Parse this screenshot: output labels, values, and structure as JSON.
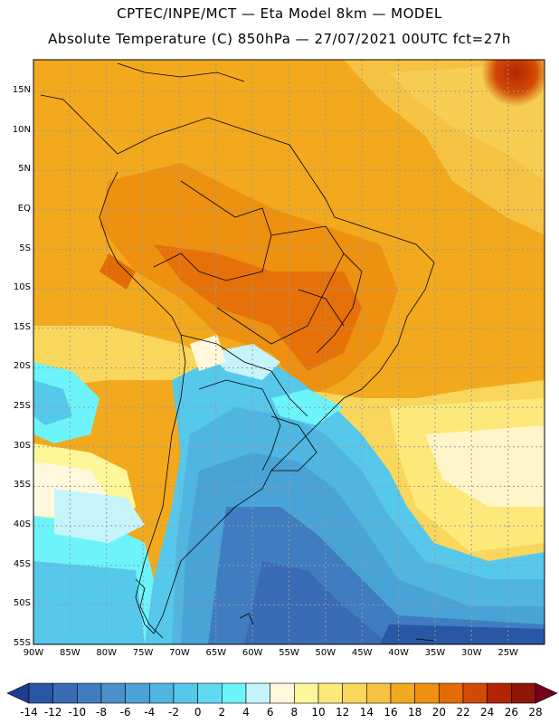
{
  "title": {
    "line1": "CPTEC/INPE/MCT —  Eta Model 8km — MODEL",
    "line2": "Absolute Temperature (C) 850hPa — 27/07/2021 00UTC fct=27h"
  },
  "map": {
    "lat_labels": [
      "15N",
      "10N",
      "5N",
      "EQ",
      "5S",
      "10S",
      "15S",
      "20S",
      "25S",
      "30S",
      "35S",
      "40S",
      "45S",
      "50S",
      "55S"
    ],
    "lat_values": [
      15,
      10,
      5,
      0,
      -5,
      -10,
      -15,
      -20,
      -25,
      -30,
      -35,
      -40,
      -45,
      -50,
      -55
    ],
    "lon_labels": [
      "90W",
      "85W",
      "80W",
      "75W",
      "70W",
      "65W",
      "60W",
      "55W",
      "50W",
      "45W",
      "40W",
      "35W",
      "30W",
      "25W"
    ],
    "lon_values": [
      -90,
      -85,
      -80,
      -75,
      -70,
      -65,
      -60,
      -55,
      -50,
      -45,
      -40,
      -35,
      -30,
      -25
    ],
    "lon_range": [
      -90,
      -20
    ],
    "lat_range": [
      -55,
      19
    ]
  },
  "colorbar": {
    "labels": [
      "-14",
      "-12",
      "-10",
      "-8",
      "-6",
      "-4",
      "-2",
      "0",
      "2",
      "4",
      "6",
      "8",
      "10",
      "12",
      "14",
      "16",
      "18",
      "20",
      "22",
      "24",
      "26",
      "28"
    ],
    "colors": [
      "#1d3d8f",
      "#2a56a6",
      "#3a6bb5",
      "#3f7dc0",
      "#4a90c9",
      "#4aa3d6",
      "#4fb6e2",
      "#56c8ec",
      "#5fdaf2",
      "#6cf4fa",
      "#c6f4fb",
      "#fff8dc",
      "#fdf79a",
      "#fce97a",
      "#f9d65c",
      "#f5c242",
      "#f2a91e",
      "#ee9010",
      "#e36c07",
      "#d24b04",
      "#b32404",
      "#8e1606",
      "#76001d"
    ]
  }
}
